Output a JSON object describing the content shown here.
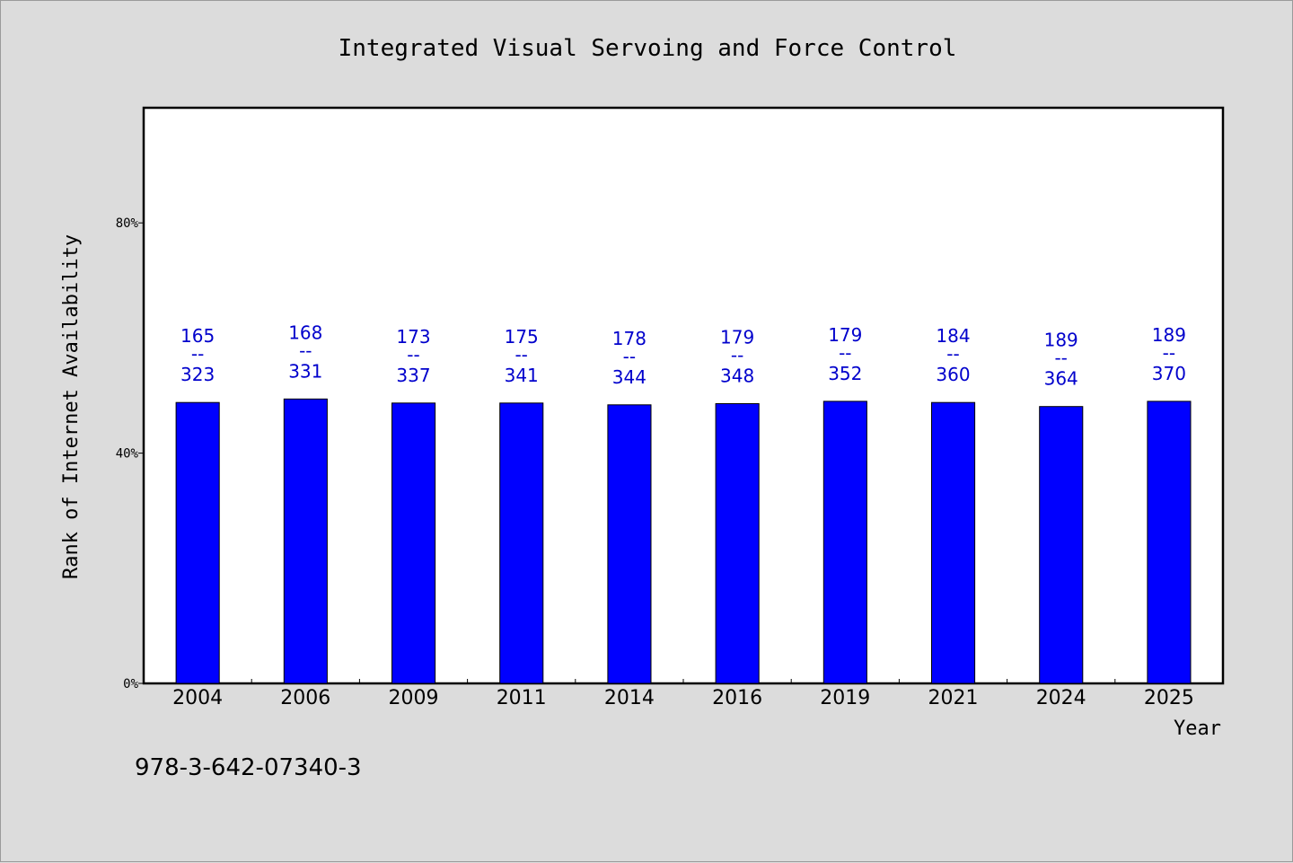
{
  "chart_data": {
    "type": "bar",
    "title": "Integrated Visual Servoing and Force Control",
    "xlabel": "Year",
    "ylabel": "Rank of Internet Availability",
    "categories": [
      "2004",
      "2006",
      "2009",
      "2011",
      "2014",
      "2016",
      "2019",
      "2021",
      "2024",
      "2025"
    ],
    "values": [
      48.8,
      49.4,
      48.7,
      48.7,
      48.4,
      48.6,
      49.0,
      48.8,
      48.1,
      49.0
    ],
    "bar_labels": [
      {
        "top": "165",
        "sep": "--",
        "bottom": "323"
      },
      {
        "top": "168",
        "sep": "--",
        "bottom": "331"
      },
      {
        "top": "173",
        "sep": "--",
        "bottom": "337"
      },
      {
        "top": "175",
        "sep": "--",
        "bottom": "341"
      },
      {
        "top": "178",
        "sep": "--",
        "bottom": "344"
      },
      {
        "top": "179",
        "sep": "--",
        "bottom": "348"
      },
      {
        "top": "179",
        "sep": "--",
        "bottom": "352"
      },
      {
        "top": "184",
        "sep": "--",
        "bottom": "360"
      },
      {
        "top": "189",
        "sep": "--",
        "bottom": "364"
      },
      {
        "top": "189",
        "sep": "--",
        "bottom": "370"
      }
    ],
    "ylim": [
      0,
      100
    ],
    "yticks": [
      0,
      40,
      80
    ],
    "ytick_labels": [
      "0%",
      "40%",
      "80%"
    ],
    "grid": false,
    "bar_color": "#0000ff",
    "label_color": "#0000cc",
    "background": "#dcdcdc",
    "plot_background": "#ffffff"
  },
  "footer": {
    "isbn": "978-3-642-07340-3"
  }
}
